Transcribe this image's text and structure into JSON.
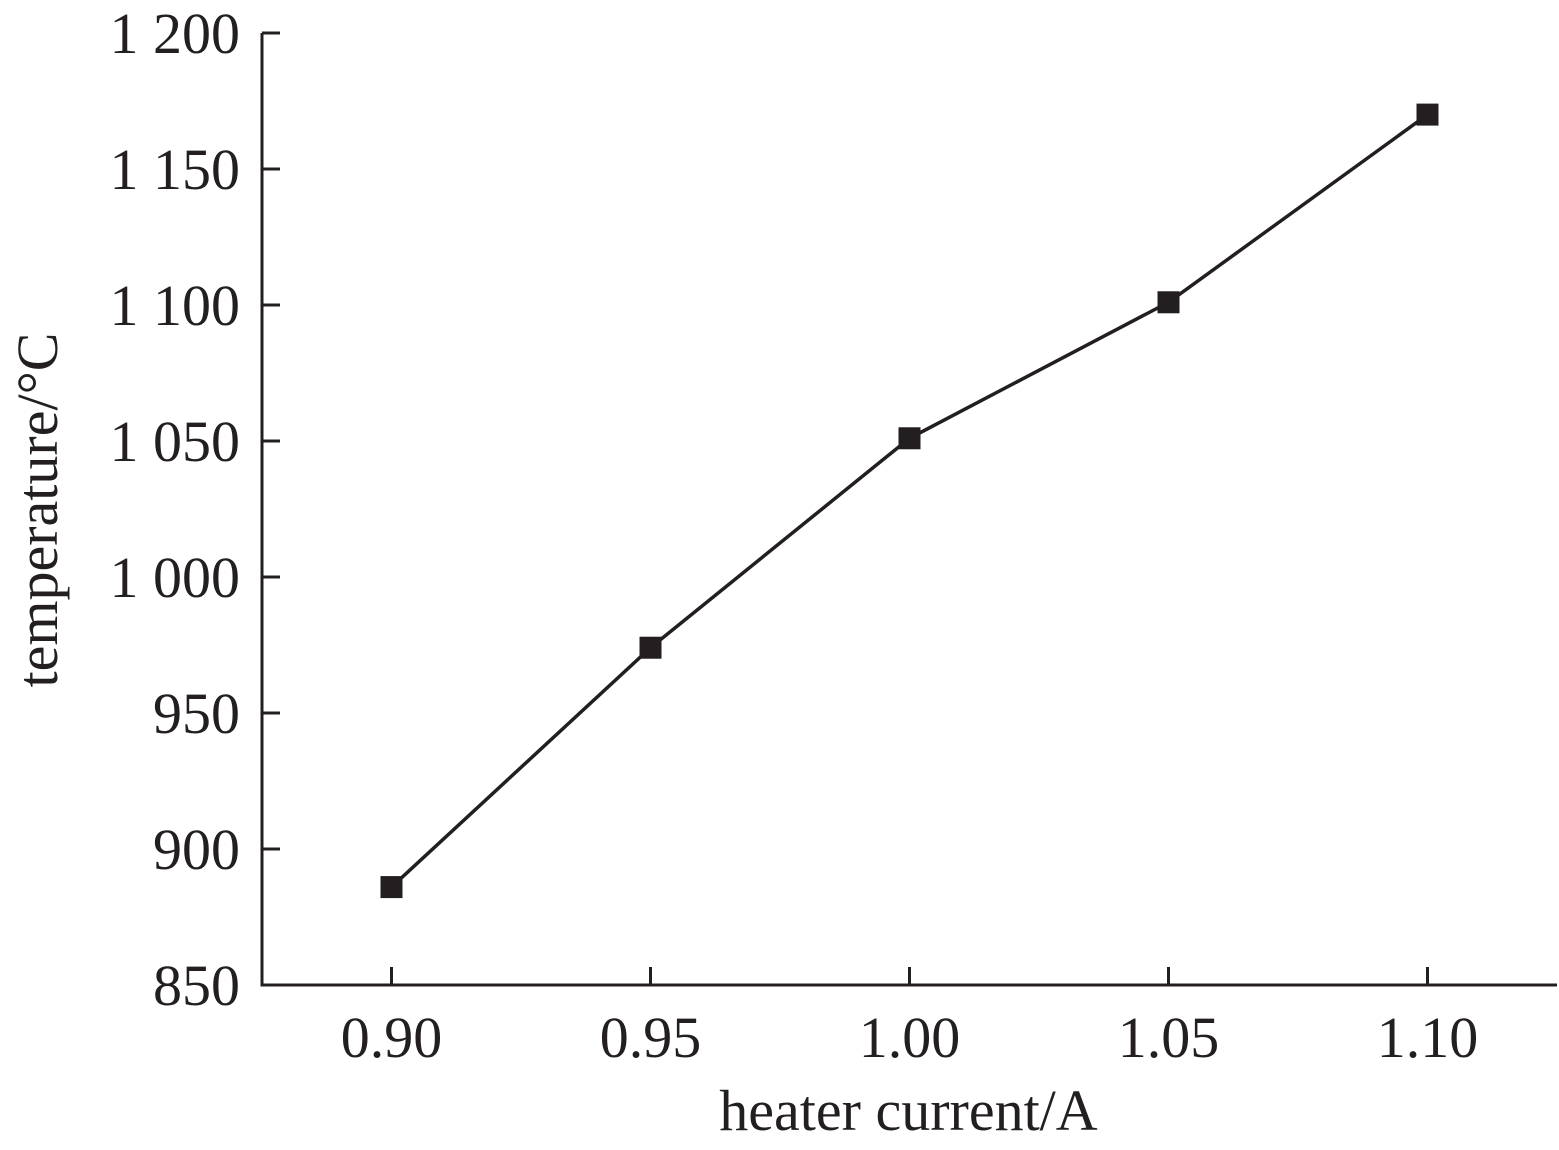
{
  "chart_data": {
    "type": "line",
    "title": "",
    "xlabel": "heater current/A",
    "ylabel": "temperature/°C",
    "x": [
      0.9,
      0.95,
      1.0,
      1.05,
      1.1
    ],
    "series": [
      {
        "values": [
          886,
          974,
          1051,
          1101,
          1170
        ],
        "marker": "square",
        "color": "#231f20"
      }
    ],
    "xticks": [
      0.9,
      0.95,
      1.0,
      1.05,
      1.1
    ],
    "xtick_labels": [
      "0.90",
      "0.95",
      "1.00",
      "1.05",
      "1.10"
    ],
    "yticks": [
      850,
      900,
      950,
      1000,
      1050,
      1100,
      1150,
      1200
    ],
    "ytick_labels": [
      "850",
      "900",
      "950",
      "1 000",
      "1 050",
      "1 100",
      "1 150",
      "1 200"
    ],
    "xlim": [
      0.875,
      1.125
    ],
    "ylim": [
      850,
      1200
    ],
    "grid": false,
    "legend": "none"
  }
}
